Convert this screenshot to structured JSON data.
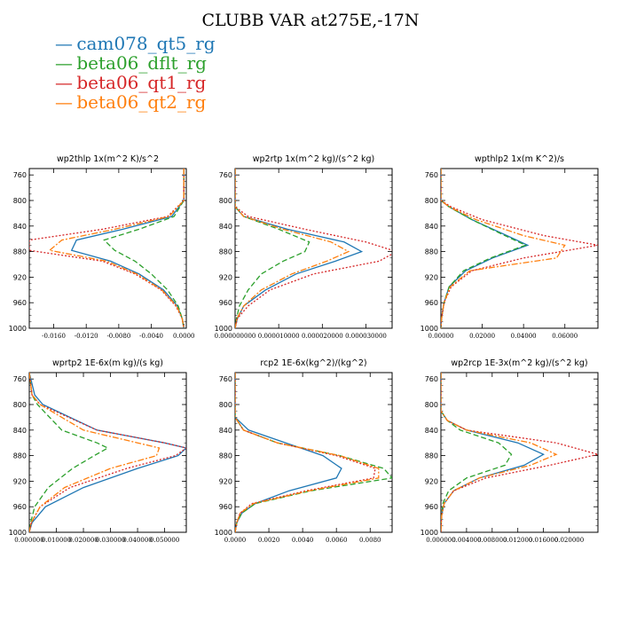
{
  "title": "CLUBB VAR at275E,-17N",
  "legend": [
    {
      "dash": "—",
      "label": "cam078_qt5_rg",
      "color": "#1f77b4"
    },
    {
      "dash": "—",
      "label": "beta06_dflt_rg",
      "color": "#2ca02c"
    },
    {
      "dash": "—",
      "label": "beta06_qt1_rg",
      "color": "#d62728"
    },
    {
      "dash": "—",
      "label": "beta06_qt2_rg",
      "color": "#ff7f0e"
    }
  ],
  "chart_data": [
    {
      "type": "line",
      "title": "wp2thlp   1x(m^2 K)/s^2",
      "xlim": [
        -0.019,
        0.0003
      ],
      "ylim": [
        1000,
        750
      ],
      "xticks": [
        -0.016,
        -0.012,
        -0.008,
        -0.004,
        0.0
      ],
      "xtick_labels": [
        "-0.0160",
        "-0.0120",
        "-0.0080",
        "-0.0040",
        "0.0000"
      ],
      "yticks": [
        760,
        800,
        840,
        880,
        920,
        960,
        1000
      ],
      "ytick_labels": [
        "760",
        "800",
        "840",
        "880",
        "920",
        "960",
        "1000"
      ],
      "series": [
        {
          "name": "cam078_qt5_rg",
          "y": [
            750,
            800,
            825,
            845,
            862,
            878,
            895,
            915,
            940,
            965,
            985,
            1000
          ],
          "x": [
            0,
            0,
            -0.0015,
            -0.0075,
            -0.0132,
            -0.0138,
            -0.009,
            -0.0055,
            -0.0025,
            -0.0008,
            -0.0002,
            0
          ]
        },
        {
          "name": "beta06_dflt_rg",
          "y": [
            750,
            800,
            825,
            845,
            862,
            878,
            895,
            915,
            940,
            965,
            985,
            1000
          ],
          "x": [
            0,
            0,
            -0.0012,
            -0.0055,
            -0.0098,
            -0.0085,
            -0.006,
            -0.004,
            -0.002,
            -0.0007,
            -0.0002,
            0
          ]
        },
        {
          "name": "beta06_qt1_rg",
          "y": [
            750,
            800,
            825,
            845,
            862,
            878,
            895,
            915,
            940,
            965,
            985,
            1000
          ],
          "x": [
            0,
            0,
            -0.002,
            -0.01,
            -0.019,
            -0.019,
            -0.01,
            -0.006,
            -0.0028,
            -0.001,
            -0.0002,
            0
          ]
        },
        {
          "name": "beta06_qt2_rg",
          "y": [
            750,
            800,
            825,
            845,
            862,
            878,
            895,
            915,
            940,
            965,
            985,
            1000
          ],
          "x": [
            0,
            0,
            -0.0018,
            -0.0085,
            -0.015,
            -0.0165,
            -0.0095,
            -0.0058,
            -0.0027,
            -0.0009,
            -0.0002,
            0
          ]
        }
      ]
    },
    {
      "type": "line",
      "title": "wp2rtp   1x(m^2 kg)/(s^2 kg)",
      "xlim": [
        0,
        3.6e-05
      ],
      "ylim": [
        1000,
        750
      ],
      "xticks": [
        0,
        1e-05,
        2e-05,
        3e-05
      ],
      "xtick_labels": [
        "0.000000000",
        "0.000010000",
        "0.000020000",
        "0.000030000"
      ],
      "yticks": [
        760,
        800,
        840,
        880,
        920,
        960,
        1000
      ],
      "ytick_labels": [
        "760",
        "800",
        "840",
        "880",
        "920",
        "960",
        "1000"
      ],
      "series": [
        {
          "name": "cam078_qt5_rg",
          "y": [
            750,
            810,
            825,
            845,
            865,
            880,
            895,
            915,
            940,
            965,
            985,
            1000
          ],
          "x": [
            0,
            0,
            2e-06,
            1.2e-05,
            2.5e-05,
            2.9e-05,
            2.3e-05,
            1.4e-05,
            7e-06,
            2e-06,
            5e-07,
            0
          ]
        },
        {
          "name": "beta06_dflt_rg",
          "y": [
            750,
            810,
            825,
            845,
            865,
            880,
            895,
            915,
            940,
            965,
            985,
            1000
          ],
          "x": [
            0,
            0,
            2e-06,
            1e-05,
            1.7e-05,
            1.6e-05,
            1.1e-05,
            6e-06,
            3e-06,
            1e-06,
            3e-07,
            0
          ]
        },
        {
          "name": "beta06_qt1_rg",
          "y": [
            750,
            810,
            825,
            845,
            865,
            880,
            895,
            915,
            940,
            965,
            985,
            1000
          ],
          "x": [
            0,
            0,
            3e-06,
            1.6e-05,
            3e-05,
            3.7e-05,
            3.3e-05,
            1.8e-05,
            8e-06,
            3e-06,
            5e-07,
            0
          ]
        },
        {
          "name": "beta06_qt2_rg",
          "y": [
            750,
            810,
            825,
            845,
            865,
            880,
            895,
            915,
            940,
            965,
            985,
            1000
          ],
          "x": [
            0,
            0,
            2e-06,
            1.1e-05,
            2.2e-05,
            2.6e-05,
            2.1e-05,
            1.3e-05,
            6e-06,
            2e-06,
            4e-07,
            0
          ]
        }
      ]
    },
    {
      "type": "line",
      "title": "wpthlp2   1x(m K^2)/s",
      "xlim": [
        0,
        0.076
      ],
      "ylim": [
        1000,
        750
      ],
      "xticks": [
        0,
        0.02,
        0.04,
        0.06
      ],
      "xtick_labels": [
        "0.00000",
        "0.02000",
        "0.04000",
        "0.06000"
      ],
      "yticks": [
        760,
        800,
        840,
        880,
        920,
        960,
        1000
      ],
      "ytick_labels": [
        "760",
        "800",
        "840",
        "880",
        "920",
        "960",
        "1000"
      ],
      "series": [
        {
          "name": "cam078_qt5_rg",
          "y": [
            750,
            800,
            810,
            830,
            855,
            870,
            890,
            910,
            935,
            960,
            985,
            1000
          ],
          "x": [
            0,
            0,
            0.004,
            0.015,
            0.032,
            0.042,
            0.025,
            0.012,
            0.004,
            0.0015,
            0.0003,
            0
          ]
        },
        {
          "name": "beta06_dflt_rg",
          "y": [
            750,
            800,
            810,
            830,
            855,
            870,
            890,
            910,
            935,
            960,
            985,
            1000
          ],
          "x": [
            0,
            0,
            0.004,
            0.015,
            0.031,
            0.041,
            0.024,
            0.011,
            0.004,
            0.0015,
            0.0003,
            0
          ]
        },
        {
          "name": "beta06_qt1_rg",
          "y": [
            750,
            800,
            810,
            830,
            855,
            870,
            890,
            910,
            935,
            960,
            985,
            1000
          ],
          "x": [
            0,
            0,
            0.005,
            0.02,
            0.05,
            0.076,
            0.04,
            0.015,
            0.005,
            0.0015,
            0.0003,
            0
          ]
        },
        {
          "name": "beta06_qt2_rg",
          "y": [
            750,
            800,
            810,
            830,
            855,
            870,
            890,
            910,
            935,
            960,
            985,
            1000
          ],
          "x": [
            0,
            0,
            0.004,
            0.017,
            0.04,
            0.06,
            0.056,
            0.014,
            0.0045,
            0.0015,
            0.0003,
            0
          ]
        }
      ]
    },
    {
      "type": "line",
      "title": "wprtp2   1E-6x(m kg)/(s kg)",
      "xlim": [
        0,
        0.058
      ],
      "ylim": [
        1000,
        750
      ],
      "xticks": [
        0,
        0.01,
        0.02,
        0.03,
        0.04,
        0.05
      ],
      "xtick_labels": [
        "0.000000",
        "0.010000",
        "0.020000",
        "0.030000",
        "0.040000",
        "0.050000"
      ],
      "yticks": [
        760,
        800,
        840,
        880,
        920,
        960,
        1000
      ],
      "ytick_labels": [
        "760",
        "800",
        "840",
        "880",
        "920",
        "960",
        "1000"
      ],
      "series": [
        {
          "name": "cam078_qt5_rg",
          "y": [
            750,
            785,
            800,
            840,
            860,
            868,
            880,
            900,
            930,
            960,
            985,
            1000
          ],
          "x": [
            0,
            0.002,
            0.005,
            0.025,
            0.05,
            0.058,
            0.055,
            0.04,
            0.02,
            0.006,
            0.001,
            0
          ]
        },
        {
          "name": "beta06_dflt_rg",
          "y": [
            750,
            785,
            800,
            840,
            860,
            868,
            880,
            900,
            930,
            960,
            985,
            1000
          ],
          "x": [
            0,
            0.001,
            0.003,
            0.012,
            0.025,
            0.029,
            0.024,
            0.016,
            0.007,
            0.002,
            0.0005,
            0
          ]
        },
        {
          "name": "beta06_qt1_rg",
          "y": [
            750,
            785,
            800,
            840,
            860,
            868,
            880,
            900,
            930,
            960,
            985,
            1000
          ],
          "x": [
            0,
            0.001,
            0.004,
            0.025,
            0.05,
            0.058,
            0.054,
            0.036,
            0.015,
            0.004,
            0.0008,
            0
          ]
        },
        {
          "name": "beta06_qt2_rg",
          "y": [
            750,
            785,
            800,
            840,
            860,
            868,
            880,
            900,
            930,
            960,
            985,
            1000
          ],
          "x": [
            0,
            0.001,
            0.004,
            0.02,
            0.04,
            0.048,
            0.047,
            0.03,
            0.013,
            0.004,
            0.0007,
            0
          ]
        }
      ]
    },
    {
      "type": "line",
      "title": "rcp2   1E-6x(kg^2)/(kg^2)",
      "xlim": [
        0,
        0.0093
      ],
      "ylim": [
        1000,
        750
      ],
      "xticks": [
        0,
        0.002,
        0.004,
        0.006,
        0.008
      ],
      "xtick_labels": [
        "0.0000",
        "0.0020",
        "0.0040",
        "0.0060",
        "0.0080"
      ],
      "yticks": [
        760,
        800,
        840,
        880,
        920,
        960,
        1000
      ],
      "ytick_labels": [
        "760",
        "800",
        "840",
        "880",
        "920",
        "960",
        "1000"
      ],
      "series": [
        {
          "name": "cam078_qt5_rg",
          "y": [
            750,
            820,
            840,
            860,
            880,
            900,
            915,
            935,
            955,
            970,
            985,
            1000
          ],
          "x": [
            0,
            0,
            0.0008,
            0.003,
            0.0052,
            0.0063,
            0.006,
            0.0032,
            0.0012,
            0.0004,
            0.0001,
            0
          ]
        },
        {
          "name": "beta06_dflt_rg",
          "y": [
            750,
            820,
            840,
            860,
            880,
            900,
            915,
            935,
            955,
            970,
            985,
            1000
          ],
          "x": [
            0,
            0,
            0.0005,
            0.0025,
            0.0062,
            0.0088,
            0.0093,
            0.0045,
            0.0012,
            0.0004,
            0.0001,
            0
          ]
        },
        {
          "name": "beta06_qt1_rg",
          "y": [
            750,
            820,
            840,
            860,
            880,
            900,
            915,
            935,
            955,
            970,
            985,
            1000
          ],
          "x": [
            0,
            0,
            0.0005,
            0.0025,
            0.006,
            0.0083,
            0.0082,
            0.0042,
            0.001,
            0.0003,
            0.0001,
            0
          ]
        },
        {
          "name": "beta06_qt2_rg",
          "y": [
            750,
            820,
            840,
            860,
            880,
            900,
            915,
            935,
            955,
            970,
            985,
            1000
          ],
          "x": [
            0,
            0,
            0.0005,
            0.0025,
            0.0062,
            0.0085,
            0.0085,
            0.0044,
            0.0011,
            0.0003,
            0.0001,
            0
          ]
        }
      ]
    },
    {
      "type": "line",
      "title": "wp2rcp   1E-3x(m^2 kg)/(s^2 kg)",
      "xlim": [
        0,
        0.0245
      ],
      "ylim": [
        1000,
        750
      ],
      "xticks": [
        0,
        0.004,
        0.008,
        0.012,
        0.016,
        0.02
      ],
      "xtick_labels": [
        "0.000000",
        "0.004000",
        "0.008000",
        "0.012000",
        "0.016000",
        "0.020000"
      ],
      "yticks": [
        760,
        800,
        840,
        880,
        920,
        960,
        1000
      ],
      "ytick_labels": [
        "760",
        "800",
        "840",
        "880",
        "920",
        "960",
        "1000"
      ],
      "series": [
        {
          "name": "cam078_qt5_rg",
          "y": [
            750,
            810,
            825,
            840,
            860,
            878,
            895,
            915,
            935,
            955,
            975,
            1000
          ],
          "x": [
            0,
            0,
            0.001,
            0.004,
            0.012,
            0.016,
            0.013,
            0.006,
            0.002,
            0.0005,
            0.0001,
            0
          ]
        },
        {
          "name": "beta06_dflt_rg",
          "y": [
            750,
            810,
            825,
            840,
            860,
            878,
            895,
            915,
            935,
            955,
            975,
            1000
          ],
          "x": [
            0,
            0,
            0.001,
            0.003,
            0.009,
            0.011,
            0.01,
            0.004,
            0.0012,
            0.0003,
            0.0001,
            0
          ]
        },
        {
          "name": "beta06_qt1_rg",
          "y": [
            750,
            810,
            825,
            840,
            860,
            878,
            895,
            915,
            935,
            955,
            975,
            1000
          ],
          "x": [
            0,
            0,
            0.001,
            0.004,
            0.018,
            0.0245,
            0.017,
            0.007,
            0.002,
            0.0005,
            0.0001,
            0
          ]
        },
        {
          "name": "beta06_qt2_rg",
          "y": [
            750,
            810,
            825,
            840,
            860,
            878,
            895,
            915,
            935,
            955,
            975,
            1000
          ],
          "x": [
            0,
            0,
            0.001,
            0.004,
            0.014,
            0.018,
            0.014,
            0.006,
            0.002,
            0.0005,
            0.0001,
            0
          ]
        }
      ]
    }
  ]
}
